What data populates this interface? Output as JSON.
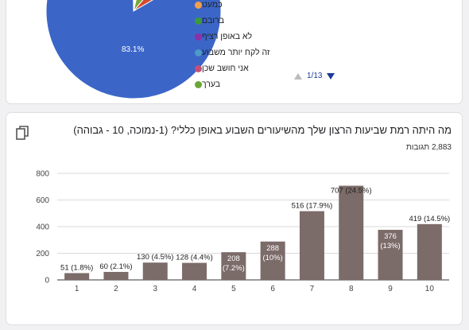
{
  "pie": {
    "percent_label": "83.1%",
    "slices": [
      {
        "color": "#3b66c8",
        "value": 83.1
      },
      {
        "color": "#d54a2a",
        "value": 5.5
      },
      {
        "color": "#76a83e",
        "value": 7.5
      }
    ]
  },
  "legend": {
    "items": [
      {
        "label": "כמעט",
        "color": "#f4a04a"
      },
      {
        "label": "ברובם",
        "color": "#3c9a3c"
      },
      {
        "label": "לא באופן רציף",
        "color": "#8e2fa6"
      },
      {
        "label": "זה לקח יותר משבוע",
        "color": "#4b9ac8"
      },
      {
        "label": "אני חושב שכן",
        "color": "#c4507a"
      },
      {
        "label": "בערך",
        "color": "#6aa634"
      }
    ]
  },
  "pager": {
    "text": "1/13"
  },
  "question": {
    "title": "מה היתה רמת שביעות הרצון שלך מהשיעורים השבוע באופן כללי? (1-נמוכה, 10 - גבוהה)",
    "responses": "2,883 תגובות"
  },
  "colors": {
    "bar": "#7b6b69",
    "grid": "#dadada"
  },
  "chart_data": {
    "type": "bar",
    "categories": [
      "1",
      "2",
      "3",
      "4",
      "5",
      "6",
      "7",
      "8",
      "9",
      "10"
    ],
    "values": [
      51,
      60,
      130,
      128,
      208,
      288,
      516,
      707,
      376,
      419
    ],
    "data_labels": [
      "51 (1.8%)",
      "60 (2.1%)",
      "130 (4.5%)",
      "128 (4.4%)",
      "208 (7.2%)",
      "288 (10%)",
      "516 (17.9%)",
      "707 (24.5%)",
      "376 (13%)",
      "419 (14.5%)"
    ],
    "yticks": [
      0,
      200,
      400,
      600,
      800
    ],
    "ylim": [
      0,
      800
    ],
    "grid": true
  }
}
